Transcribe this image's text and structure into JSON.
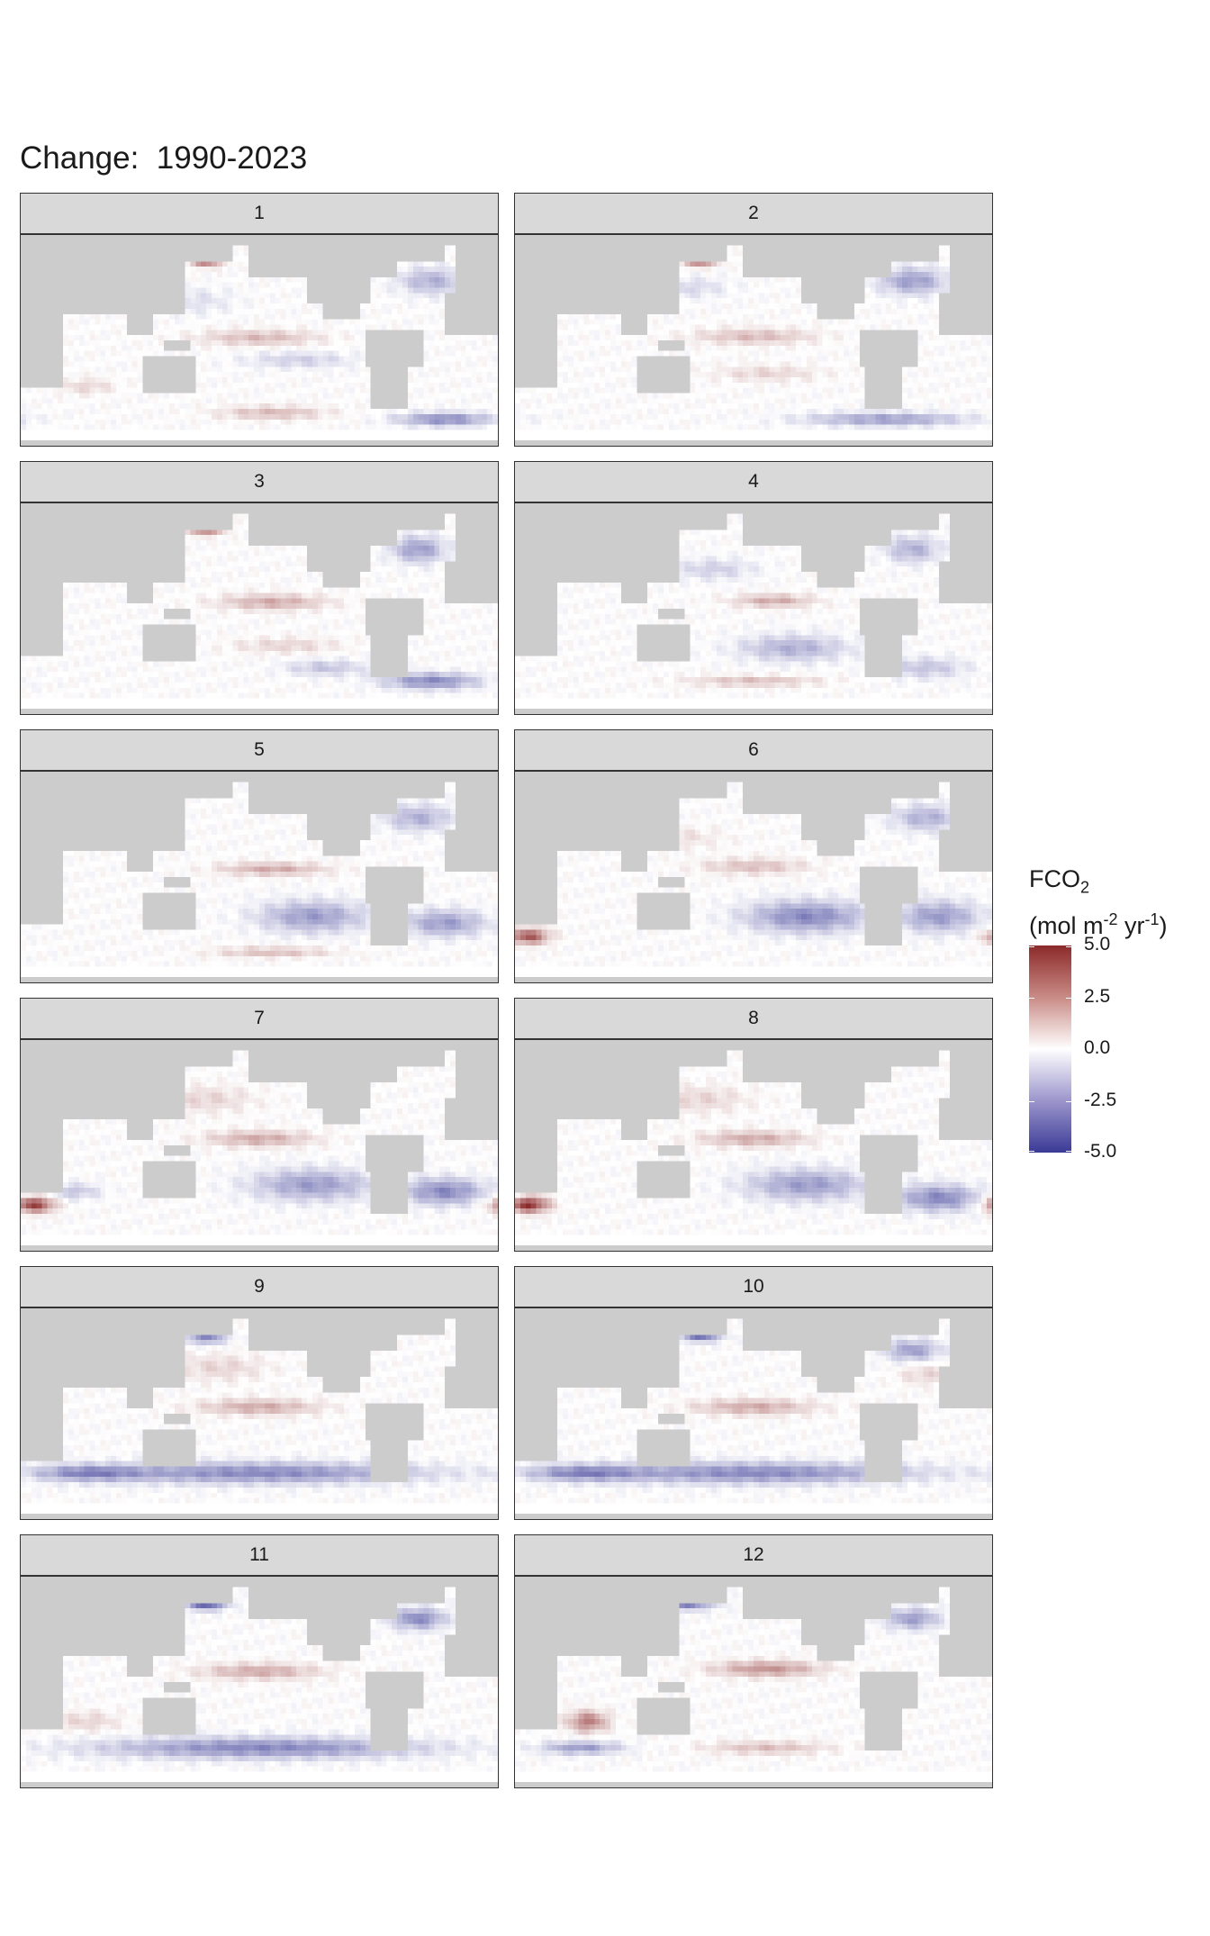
{
  "figure": {
    "title": "Change:  1990-2023"
  },
  "chart_data": {
    "type": "heatmap",
    "title": "Change:  1990-2023",
    "description_variable": "FCO2 change per grid cell, faceted by month",
    "facets": [
      {
        "label": "1",
        "red_features": [
          "North Pacific (Okhotsk/Bering) strong positive ~5",
          "Equatorial Pacific band ~1.5",
          "South Indian ~1",
          "Southern Ocean Pacific sector ~1.5"
        ],
        "blue_features": [
          "North Atlantic ~-2",
          "Southern Ocean Atlantic ~-3"
        ]
      },
      {
        "label": "2",
        "red_features": [
          "North Pacific strong positive ~5",
          "Equatorial Pacific band ~1.5",
          "South Pacific ~1"
        ],
        "blue_features": [
          "North Atlantic ~-2.5",
          "Southern Ocean ~-2.5"
        ]
      },
      {
        "label": "3",
        "red_features": [
          "North Pacific strong positive ~5",
          "Equatorial Pacific band ~2",
          "South Pacific ~1"
        ],
        "blue_features": [
          "North Atlantic ~-2.5",
          "Southern Ocean Atlantic ~-3"
        ]
      },
      {
        "label": "4",
        "red_features": [
          "Equatorial Pacific band ~2",
          "Southern Ocean Pacific ~1.5"
        ],
        "blue_features": [
          "Subtropical North Pacific ~-1.5",
          "North Atlantic ~-2",
          "South Pacific ~-2"
        ]
      },
      {
        "label": "5",
        "red_features": [
          "Equatorial Pacific band ~2",
          "Southern Ocean Pacific ~1.5"
        ],
        "blue_features": [
          "North Atlantic ~-2",
          "South Pacific ~-2.5",
          "South Atlantic ~-2.5"
        ]
      },
      {
        "label": "6",
        "red_features": [
          "Southwest Indian/Southern Ocean ~4",
          "Equatorial Pacific ~1.5"
        ],
        "blue_features": [
          "South Pacific ~-3",
          "South Atlantic ~-2.5",
          "North Atlantic ~-2"
        ]
      },
      {
        "label": "7",
        "red_features": [
          "Southwest Indian/Southern Ocean ~4.5",
          "Equatorial Pacific ~2",
          "North Pacific ~1"
        ],
        "blue_features": [
          "South Pacific ~-2.5",
          "South Atlantic ~-3"
        ]
      },
      {
        "label": "8",
        "red_features": [
          "Southwest Indian/Southern Ocean ~5",
          "Equatorial Pacific ~2",
          "North Pacific ~1"
        ],
        "blue_features": [
          "South Pacific ~-2.5",
          "South Atlantic ~-3"
        ]
      },
      {
        "label": "9",
        "red_features": [
          "Equatorial Pacific ~2",
          "North Pacific ~1"
        ],
        "blue_features": [
          "Southern Ocean ~-3",
          "North Pacific margin ~-3"
        ]
      },
      {
        "label": "10",
        "red_features": [
          "Equatorial Pacific ~2",
          "Subtropical North Atlantic ~1"
        ],
        "blue_features": [
          "Southern Ocean ~-3",
          "North Pacific margin ~-4",
          "North Atlantic ~-2.5"
        ]
      },
      {
        "label": "11",
        "red_features": [
          "Equatorial Pacific ~2",
          "South Indian ~1"
        ],
        "blue_features": [
          "Southern Ocean ~-3",
          "North Pacific margin ~-4.5",
          "North Atlantic ~-3"
        ]
      },
      {
        "label": "12",
        "red_features": [
          "Equatorial Pacific ~2.5",
          "South Indian ~3",
          "Southern Ocean Pacific ~1.5"
        ],
        "blue_features": [
          "North Pacific margin ~-3.5",
          "North Atlantic ~-2.5",
          "Southern Ocean Indian ~-2.5"
        ]
      }
    ],
    "color_scale": {
      "limits": [
        -5.0,
        5.0
      ],
      "ticks": [
        "5.0",
        "2.5",
        "0.0",
        "-2.5",
        "-5.0"
      ],
      "tick_values": [
        5.0,
        2.5,
        0.0,
        -2.5,
        -5.0
      ],
      "low_color": "#3a3a96",
      "mid_color": "#ffffff",
      "high_color": "#8c2a2a"
    },
    "land_color": "#cccccc",
    "legend": {
      "title_main": "FCO",
      "title_sub": "2",
      "units_prefix": "(mol m",
      "units_sup1": "-2",
      "units_mid": " yr",
      "units_sup2": "-1",
      "units_suffix": ")"
    }
  }
}
